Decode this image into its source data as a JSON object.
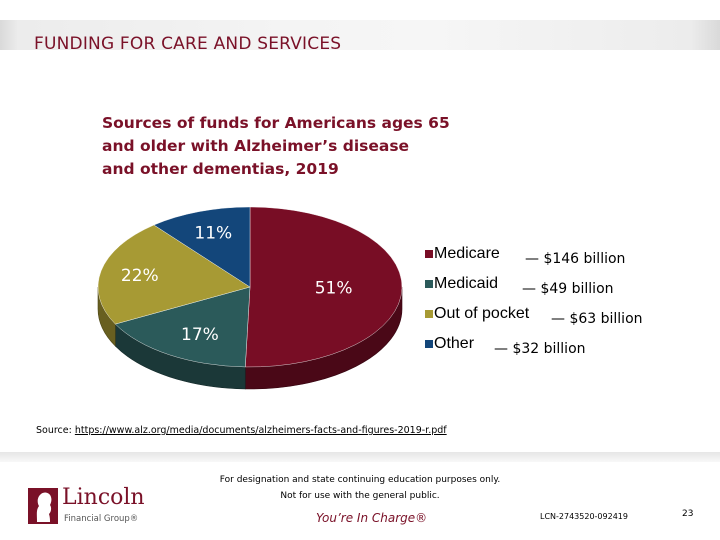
{
  "header": {
    "title": "FUNDING FOR CARE AND SERVICES"
  },
  "chart_data": {
    "type": "pie",
    "title_lines": [
      "Sources of funds for Americans ages 65",
      "and older with Alzheimer’s disease",
      "and other dementias, 2019"
    ],
    "categories": [
      "Medicare",
      "Medicaid",
      "Out of pocket",
      "Other"
    ],
    "values": [
      51,
      17,
      22,
      11
    ],
    "value_labels": [
      "51%",
      "17%",
      "22%",
      "11%"
    ],
    "amounts": [
      "— $146 billion",
      "— $49 billion",
      "— $63 billion",
      "— $32 billion"
    ],
    "colors": [
      "#780d25",
      "#2b5a5a",
      "#a79a34",
      "#13467a"
    ],
    "legend_position": "right",
    "three_d": true
  },
  "source": {
    "label": "Source: ",
    "url": "https://www.alz.org/media/documents/alzheimers-facts-and-figures-2019-r.pdf"
  },
  "footer": {
    "disclaimer_line1": "For designation and state continuing education purposes only.",
    "disclaimer_line2": "Not for use with the general public.",
    "tagline": "You’re In Charge®",
    "code": "LCN-2743520-092419",
    "page_number": "23",
    "logo_name": "Lincoln",
    "logo_sub": "Financial Group®"
  }
}
